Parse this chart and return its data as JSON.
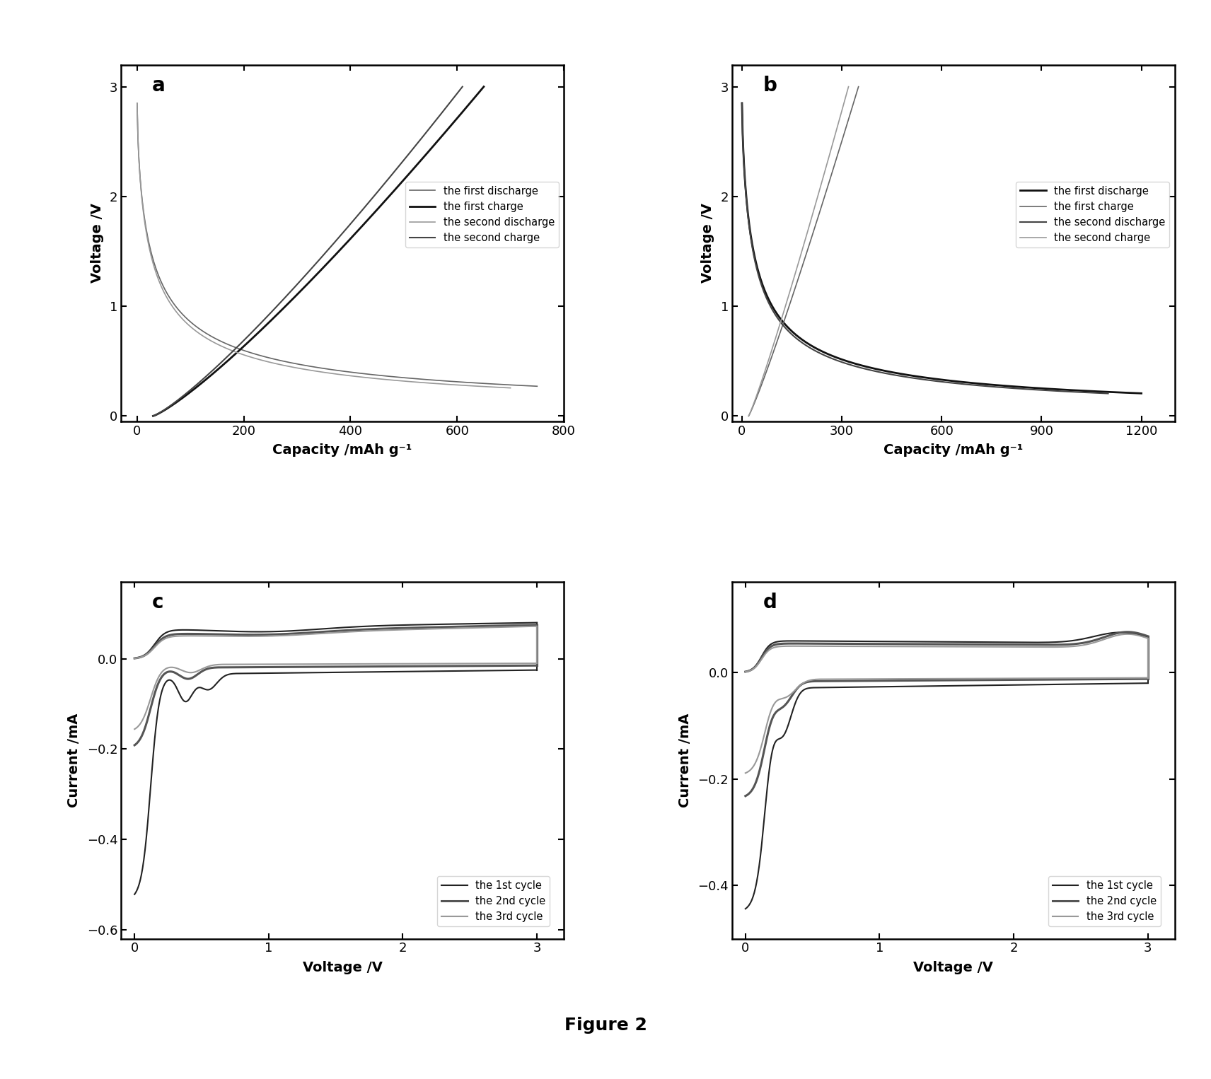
{
  "fig_width": 17.12,
  "fig_height": 15.26,
  "background_color": "#ffffff",
  "figure_label": "Figure 2",
  "subplots": {
    "a": {
      "label": "a",
      "xlabel": "Capacity /mAh g⁻¹",
      "ylabel": "Voltage /V",
      "xlim": [
        -30,
        800
      ],
      "ylim": [
        -0.05,
        3.2
      ],
      "xticks": [
        0,
        200,
        400,
        600,
        800
      ],
      "yticks": [
        0,
        1,
        2,
        3
      ]
    },
    "b": {
      "label": "b",
      "xlabel": "Capacity /mAh g⁻¹",
      "ylabel": "Voltage /V",
      "xlim": [
        -30,
        1300
      ],
      "ylim": [
        -0.05,
        3.2
      ],
      "xticks": [
        0,
        300,
        600,
        900,
        1200
      ],
      "yticks": [
        0,
        1,
        2,
        3
      ]
    },
    "c": {
      "label": "c",
      "xlabel": "Voltage /V",
      "ylabel": "Current /mA",
      "xlim": [
        -0.1,
        3.2
      ],
      "ylim": [
        -0.62,
        0.17
      ],
      "xticks": [
        0,
        1,
        2,
        3
      ],
      "yticks": [
        -0.6,
        -0.4,
        -0.2,
        0.0
      ]
    },
    "d": {
      "label": "d",
      "xlabel": "Voltage /V",
      "ylabel": "Current /mA",
      "xlim": [
        -0.1,
        3.2
      ],
      "ylim": [
        -0.5,
        0.17
      ],
      "xticks": [
        0,
        1,
        2,
        3
      ],
      "yticks": [
        -0.4,
        -0.2,
        0.0
      ]
    }
  }
}
